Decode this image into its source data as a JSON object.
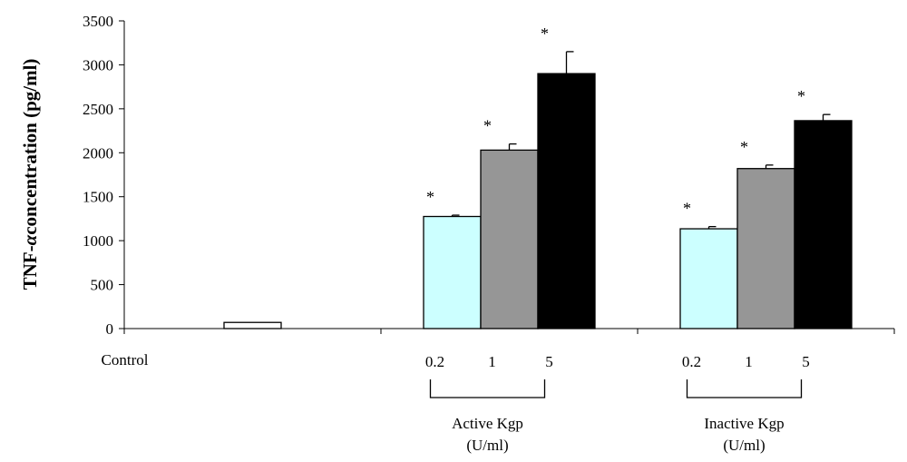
{
  "chart_data": {
    "type": "bar",
    "ylabel_prefix": "TNF-",
    "ylabel_symbol": "α",
    "ylabel_suffix": "concentration  (pg/ml)",
    "ylim": [
      0,
      3500
    ],
    "yticks": [
      0,
      500,
      1000,
      1500,
      2000,
      2500,
      3000,
      3500
    ],
    "ytick_labels": [
      "0",
      "500",
      "1000",
      "1500",
      "2000",
      "2500",
      "3000",
      "3500"
    ],
    "groups": [
      {
        "label": "Control",
        "bracket_label_line1": "",
        "bracket_label_line2": "",
        "bars": [
          {
            "dose": "",
            "value": 70,
            "error": 0,
            "significant": false,
            "color": "#ffffff"
          }
        ]
      },
      {
        "label": "",
        "bracket_label_line1": "Active Kgp",
        "bracket_label_line2": "(U/ml)",
        "bars": [
          {
            "dose": "0.2",
            "value": 1275,
            "error": 15,
            "significant": true,
            "color": "#ccffff"
          },
          {
            "dose": "1",
            "value": 2030,
            "error": 70,
            "significant": true,
            "color": "#969696"
          },
          {
            "dose": "5",
            "value": 2900,
            "error": 250,
            "significant": true,
            "color": "#000000"
          }
        ]
      },
      {
        "label": "",
        "bracket_label_line1": "Inactive Kgp",
        "bracket_label_line2": "(U/ml)",
        "bars": [
          {
            "dose": "0.2",
            "value": 1135,
            "error": 25,
            "significant": true,
            "color": "#ccffff"
          },
          {
            "dose": "1",
            "value": 1820,
            "error": 40,
            "significant": true,
            "color": "#969696"
          },
          {
            "dose": "5",
            "value": 2365,
            "error": 70,
            "significant": true,
            "color": "#000000"
          }
        ]
      }
    ],
    "significance_marker": "*"
  }
}
